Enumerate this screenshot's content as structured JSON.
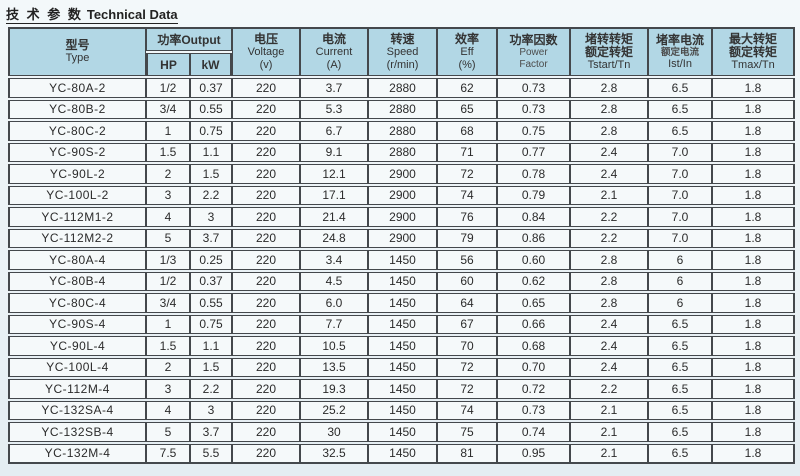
{
  "title": {
    "zh": "技 术 参 数",
    "en": "Technical Data"
  },
  "colors": {
    "page_bg": "#e9f1f6",
    "header_bg": "#b2d7e5",
    "row_bg": "#f5f9fa",
    "border": "#44484c"
  },
  "table": {
    "header": {
      "type": {
        "zh": "型号",
        "en": "Type"
      },
      "output": {
        "label": "功率Output",
        "sub": [
          "HP",
          "kW"
        ]
      },
      "voltage": {
        "zh": "电压",
        "en": "Voltage",
        "unit": "(v)"
      },
      "current": {
        "zh": "电流",
        "en": "Current",
        "unit": "(A)"
      },
      "speed": {
        "zh": "转速",
        "en": "Speed",
        "unit": "(r/min)"
      },
      "eff": {
        "zh": "效率",
        "en": "Eff",
        "unit": "(%)"
      },
      "power_factor": {
        "zh": "功率因数",
        "en1": "Power",
        "en2": "Factor"
      },
      "tstart": {
        "zh1": "堵转转矩",
        "zh2": "额定转矩",
        "en": "Tstart/Tn"
      },
      "ist": {
        "zh1": "堵率电流",
        "zh2": "额定电流",
        "en": "Ist/In"
      },
      "tmax": {
        "zh1": "最大转矩",
        "zh2": "额定转矩",
        "en": "Tmax/Tn"
      }
    },
    "rows": [
      [
        "YC-80A-2",
        "1/2",
        "0.37",
        "220",
        "3.7",
        "2880",
        "62",
        "0.73",
        "2.8",
        "6.5",
        "1.8"
      ],
      [
        "YC-80B-2",
        "3/4",
        "0.55",
        "220",
        "5.3",
        "2880",
        "65",
        "0.73",
        "2.8",
        "6.5",
        "1.8"
      ],
      [
        "YC-80C-2",
        "1",
        "0.75",
        "220",
        "6.7",
        "2880",
        "68",
        "0.75",
        "2.8",
        "6.5",
        "1.8"
      ],
      [
        "YC-90S-2",
        "1.5",
        "1.1",
        "220",
        "9.1",
        "2880",
        "71",
        "0.77",
        "2.4",
        "7.0",
        "1.8"
      ],
      [
        "YC-90L-2",
        "2",
        "1.5",
        "220",
        "12.1",
        "2900",
        "72",
        "0.78",
        "2.4",
        "7.0",
        "1.8"
      ],
      [
        "YC-100L-2",
        "3",
        "2.2",
        "220",
        "17.1",
        "2900",
        "74",
        "0.79",
        "2.1",
        "7.0",
        "1.8"
      ],
      [
        "YC-112M1-2",
        "4",
        "3",
        "220",
        "21.4",
        "2900",
        "76",
        "0.84",
        "2.2",
        "7.0",
        "1.8"
      ],
      [
        "YC-112M2-2",
        "5",
        "3.7",
        "220",
        "24.8",
        "2900",
        "79",
        "0.86",
        "2.2",
        "7.0",
        "1.8"
      ],
      [
        "YC-80A-4",
        "1/3",
        "0.25",
        "220",
        "3.4",
        "1450",
        "56",
        "0.60",
        "2.8",
        "6",
        "1.8"
      ],
      [
        "YC-80B-4",
        "1/2",
        "0.37",
        "220",
        "4.5",
        "1450",
        "60",
        "0.62",
        "2.8",
        "6",
        "1.8"
      ],
      [
        "YC-80C-4",
        "3/4",
        "0.55",
        "220",
        "6.0",
        "1450",
        "64",
        "0.65",
        "2.8",
        "6",
        "1.8"
      ],
      [
        "YC-90S-4",
        "1",
        "0.75",
        "220",
        "7.7",
        "1450",
        "67",
        "0.66",
        "2.4",
        "6.5",
        "1.8"
      ],
      [
        "YC-90L-4",
        "1.5",
        "1.1",
        "220",
        "10.5",
        "1450",
        "70",
        "0.68",
        "2.4",
        "6.5",
        "1.8"
      ],
      [
        "YC-100L-4",
        "2",
        "1.5",
        "220",
        "13.5",
        "1450",
        "72",
        "0.70",
        "2.4",
        "6.5",
        "1.8"
      ],
      [
        "YC-112M-4",
        "3",
        "2.2",
        "220",
        "19.3",
        "1450",
        "72",
        "0.72",
        "2.2",
        "6.5",
        "1.8"
      ],
      [
        "YC-132SA-4",
        "4",
        "3",
        "220",
        "25.2",
        "1450",
        "74",
        "0.73",
        "2.1",
        "6.5",
        "1.8"
      ],
      [
        "YC-132SB-4",
        "5",
        "3.7",
        "220",
        "30",
        "1450",
        "75",
        "0.74",
        "2.1",
        "6.5",
        "1.8"
      ],
      [
        "YC-132M-4",
        "7.5",
        "5.5",
        "220",
        "32.5",
        "1450",
        "81",
        "0.95",
        "2.1",
        "6.5",
        "1.8"
      ]
    ]
  }
}
